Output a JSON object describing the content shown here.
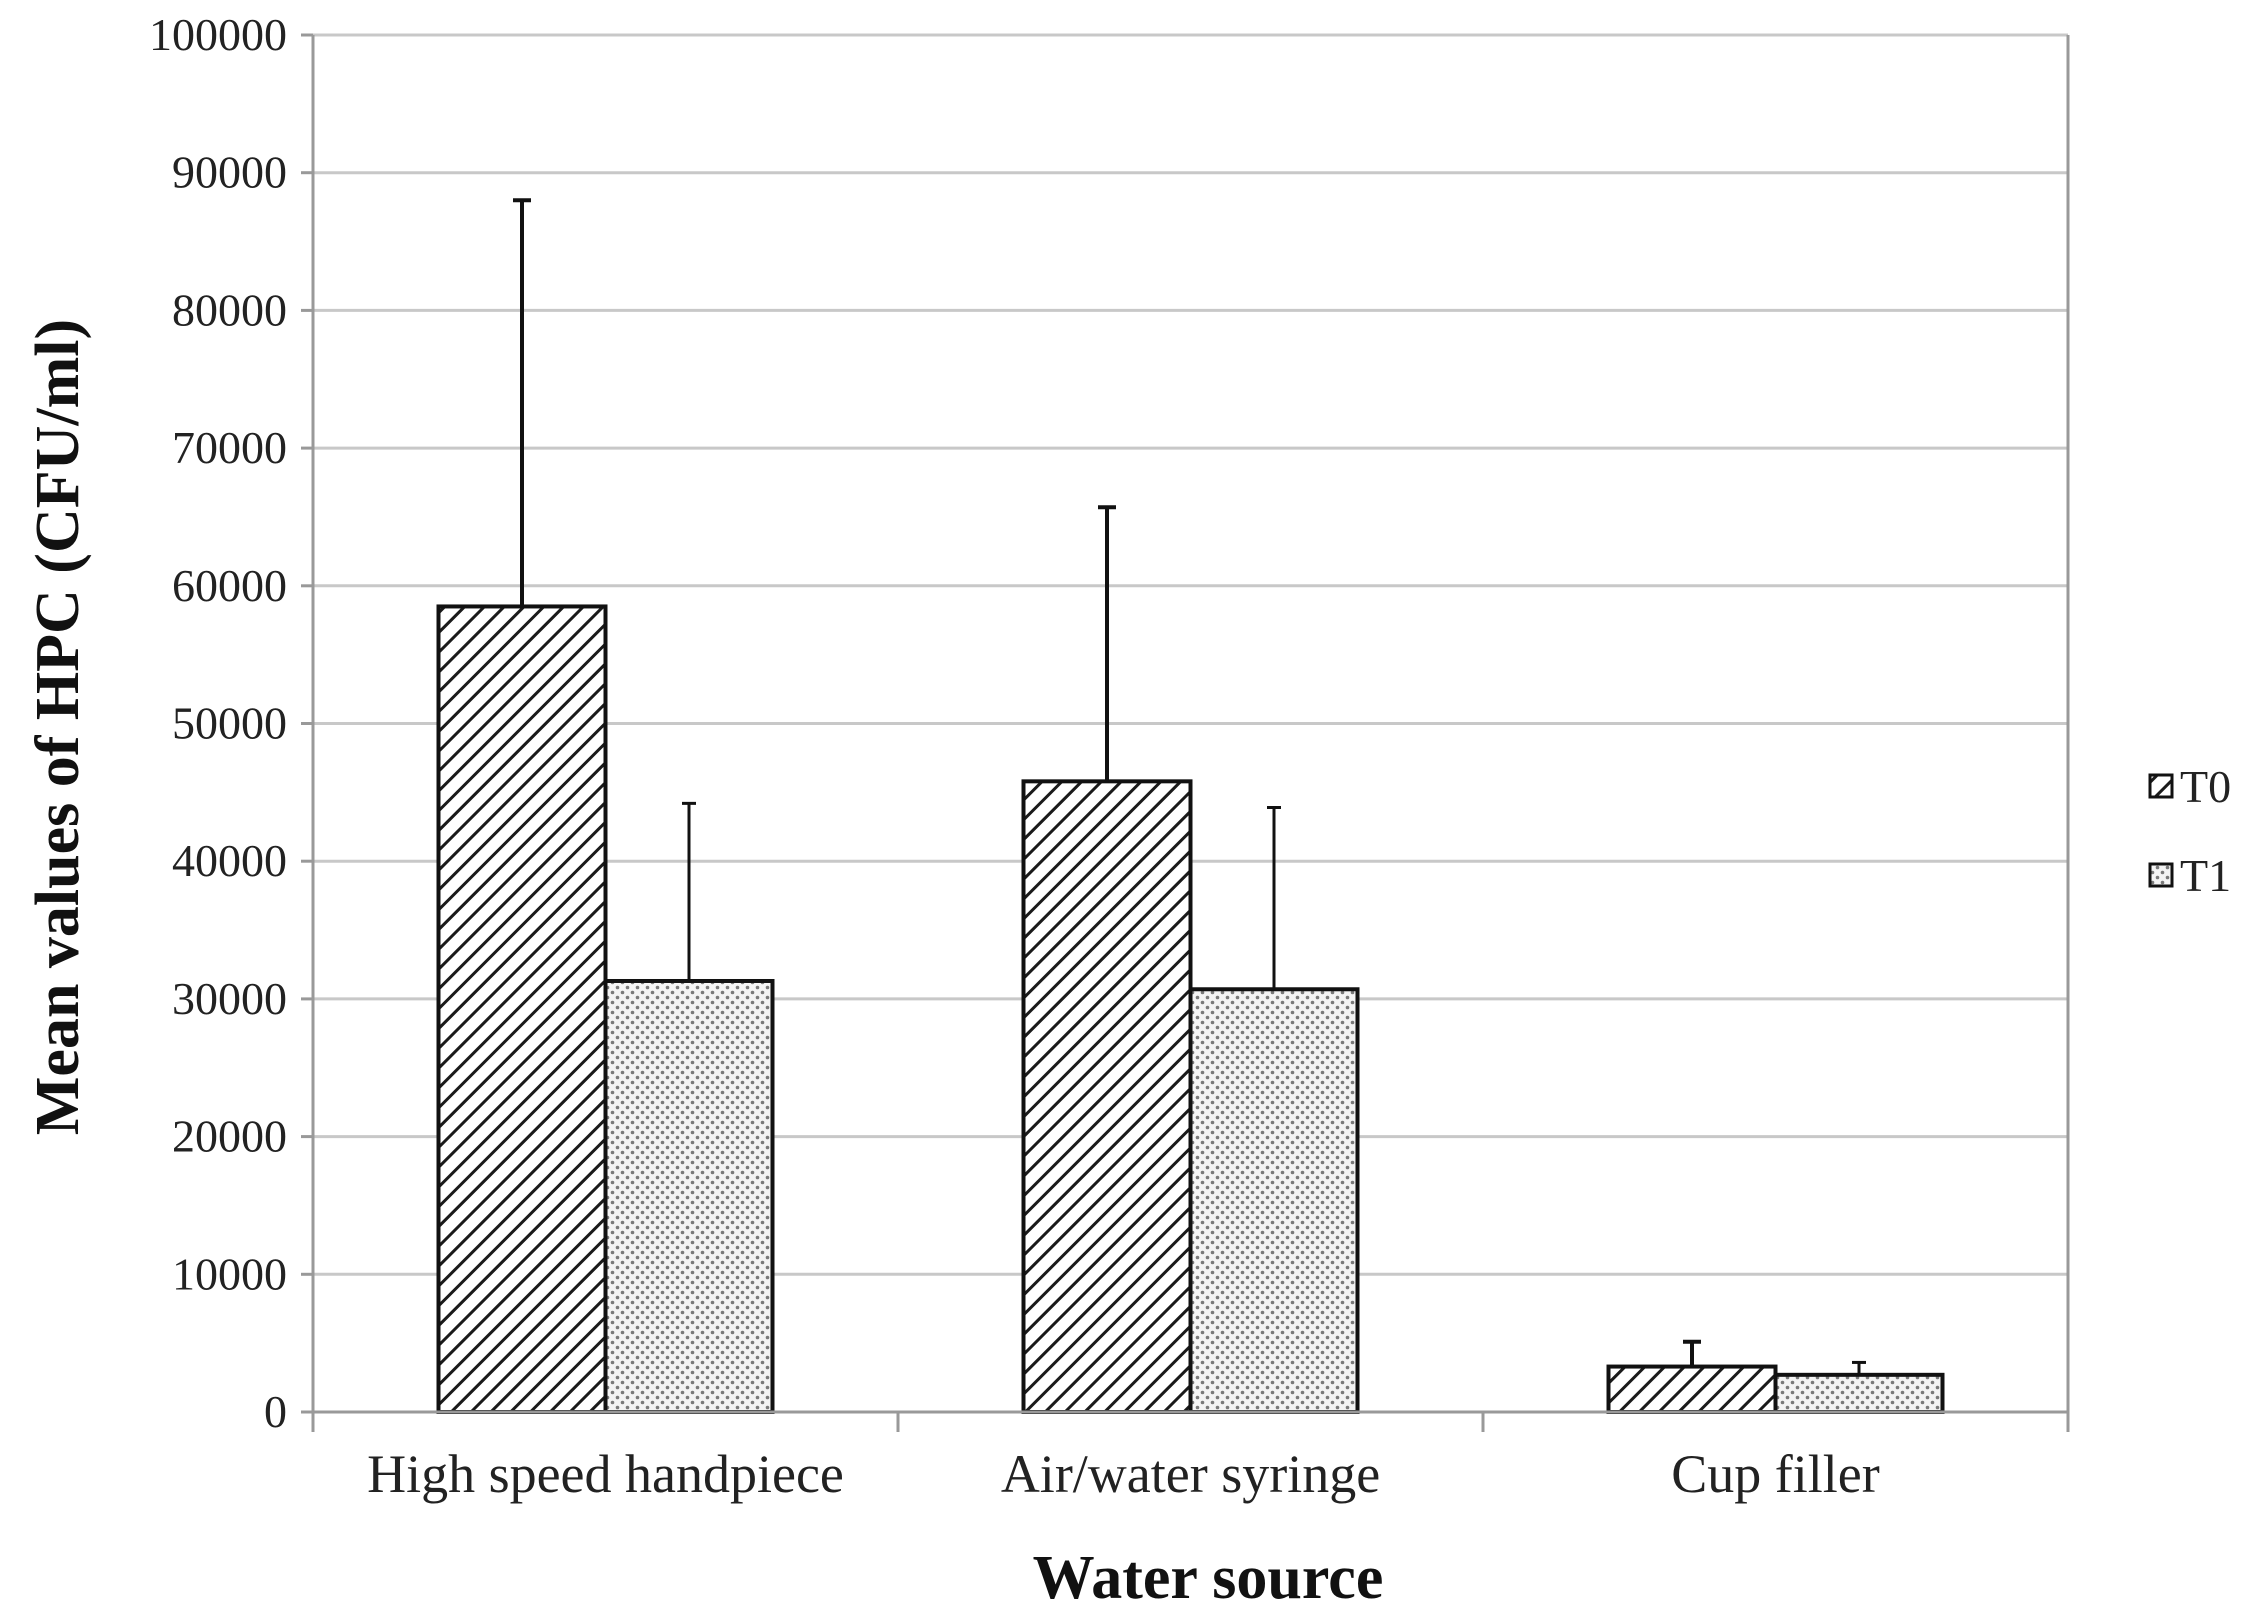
{
  "chart_data": {
    "type": "bar",
    "title": "",
    "xlabel": "Water source",
    "ylabel": "Mean values of HPC (CFU/ml)",
    "ylim": [
      0,
      100000
    ],
    "ytick_step": 10000,
    "grid": true,
    "legend_position": "right",
    "categories": [
      "High speed handpiece",
      "Air/water syringe",
      "Cup filler"
    ],
    "series": [
      {
        "name": "T0",
        "pattern": "diagonal-hatch",
        "values": [
          58500,
          45800,
          3300
        ],
        "error": [
          29500,
          19900,
          1800
        ]
      },
      {
        "name": "T1",
        "pattern": "dotted",
        "values": [
          31300,
          30700,
          2700
        ],
        "error": [
          12900,
          13200,
          900
        ]
      }
    ]
  },
  "colors": {
    "grid": "#c8c8c8",
    "axis": "#999999",
    "bar_stroke": "#111111",
    "hatch": "#1a1a1a",
    "dots": "#7a7a7a"
  }
}
